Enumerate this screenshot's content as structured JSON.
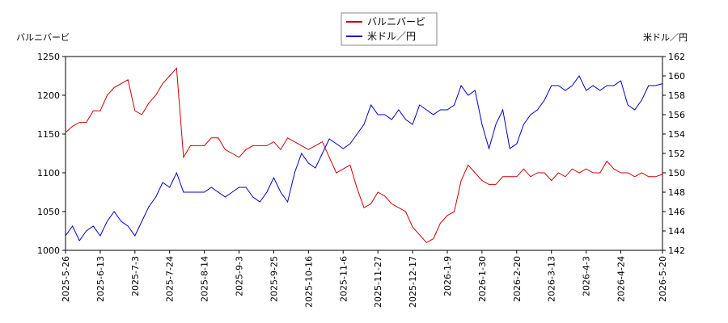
{
  "chart_data": {
    "type": "line",
    "ylabel": "バルニバービ",
    "y2label": "米ドル／円",
    "categories": [
      "2025-5-26",
      null,
      null,
      null,
      null,
      "2025-6-13",
      null,
      null,
      null,
      null,
      "2025-7-3",
      null,
      null,
      null,
      null,
      "2025-7-24",
      null,
      null,
      null,
      null,
      "2025-8-14",
      null,
      null,
      null,
      null,
      "2025-9-3",
      null,
      null,
      null,
      null,
      "2025-9-25",
      null,
      null,
      null,
      null,
      "2025-10-16",
      null,
      null,
      null,
      null,
      "2025-11-6",
      null,
      null,
      null,
      null,
      "2025-11-27",
      null,
      null,
      null,
      null,
      "2025-12-17",
      null,
      null,
      null,
      null,
      "2026-1-9",
      null,
      null,
      null,
      null,
      "2026-1-30",
      null,
      null,
      null,
      null,
      "2026-2-20",
      null,
      null,
      null,
      null,
      "2026-3-13",
      null,
      null,
      null,
      null,
      "2026-4-3",
      null,
      null,
      null,
      null,
      "2026-4-24",
      null,
      null,
      null,
      null,
      null,
      "2026-5-20"
    ],
    "series": [
      {
        "name": "バルニバービ",
        "color": "#cc0000",
        "axis": "y",
        "values": [
          1152,
          1160,
          1165,
          1165,
          1180,
          1180,
          1200,
          1210,
          1215,
          1220,
          1180,
          1175,
          1190,
          1200,
          1215,
          1225,
          1235,
          1120,
          1135,
          1135,
          1135,
          1145,
          1145,
          1130,
          1125,
          1120,
          1130,
          1135,
          1135,
          1135,
          1140,
          1130,
          1145,
          1140,
          1135,
          1130,
          1135,
          1140,
          1120,
          1100,
          1105,
          1110,
          1080,
          1055,
          1060,
          1075,
          1070,
          1060,
          1055,
          1050,
          1030,
          1020,
          1010,
          1015,
          1035,
          1045,
          1050,
          1090,
          1110,
          1100,
          1090,
          1085,
          1085,
          1095,
          1095,
          1095,
          1105,
          1095,
          1100,
          1100,
          1090,
          1100,
          1095,
          1105,
          1100,
          1105,
          1100,
          1100,
          1115,
          1105,
          1100,
          1100,
          1095,
          1100,
          1095,
          1095,
          1098
        ]
      },
      {
        "name": "米ドル／円",
        "color": "#0000cc",
        "axis": "y2",
        "values": [
          143.5,
          144.5,
          143,
          144,
          144.5,
          143.5,
          145,
          146,
          145,
          144.5,
          143.5,
          145,
          146.5,
          147.5,
          149,
          148.5,
          150,
          148,
          148,
          148,
          148,
          148.5,
          148,
          147.5,
          148,
          148.5,
          148.5,
          147.5,
          147,
          148,
          149.5,
          148,
          147,
          150,
          152,
          151,
          150.5,
          152,
          153.5,
          153,
          152.5,
          153,
          154,
          155,
          157,
          156,
          156,
          155.5,
          156.5,
          155.5,
          155,
          157,
          156.5,
          156,
          156.5,
          156.5,
          157,
          159,
          158,
          158.5,
          155,
          152.5,
          155,
          156.5,
          152.5,
          153,
          155,
          156,
          156.5,
          157.5,
          159,
          159,
          158.5,
          159,
          160,
          158.5,
          159,
          158.5,
          159,
          159,
          159.5,
          157,
          156.5,
          157.5,
          159,
          159,
          159.2
        ]
      }
    ],
    "ylim": [
      1000,
      1250
    ],
    "yticks": [
      1000,
      1050,
      1100,
      1150,
      1200,
      1250
    ],
    "y2lim": [
      142,
      162
    ],
    "y2ticks": [
      142,
      144,
      146,
      148,
      150,
      152,
      154,
      156,
      158,
      160,
      162
    ],
    "grid": false,
    "legend": "top"
  }
}
